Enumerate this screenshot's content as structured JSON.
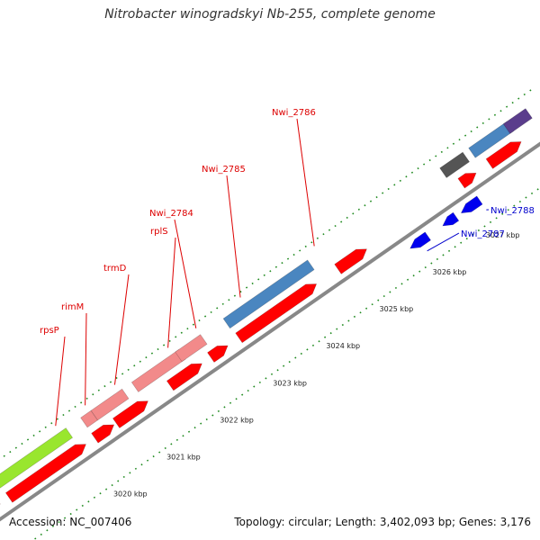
{
  "title": "Nitrobacter winogradskyi Nb-255, complete genome",
  "footer": {
    "accession": "Accession: NC_007406",
    "stats": "Topology: circular; Length: 3,402,093 bp; Genes: 3,176"
  },
  "colors": {
    "backbone": "#888888",
    "forward_cds": "#ff0000",
    "forward_cds_light": "#f28a8a",
    "reverse_cds": "#0000ee",
    "steelblue": "#4a86c0",
    "lime": "#99e62e",
    "gray": "#555555",
    "purple": "#5a3d8c",
    "tick": "#1f8a1f",
    "label_red": "#dd0000",
    "label_blue": "#0000cc"
  },
  "tick_labels": [
    {
      "kbp": 3020,
      "text": "3020 kbp"
    },
    {
      "kbp": 3021,
      "text": "3021 kbp"
    },
    {
      "kbp": 3022,
      "text": "3022 kbp"
    },
    {
      "kbp": 3023,
      "text": "3023 kbp"
    },
    {
      "kbp": 3024,
      "text": "3024 kbp"
    },
    {
      "kbp": 3025,
      "text": "3025 kbp"
    },
    {
      "kbp": 3026,
      "text": "3026 kbp"
    },
    {
      "kbp": 3027,
      "text": "3027 kbp"
    }
  ],
  "gene_labels": [
    {
      "name": "rpsP",
      "color": "label_red"
    },
    {
      "name": "rimM",
      "color": "label_red"
    },
    {
      "name": "trmD",
      "color": "label_red"
    },
    {
      "name": "rplS",
      "color": "label_red"
    },
    {
      "name": "Nwi_2784",
      "color": "label_red"
    },
    {
      "name": "Nwi_2785",
      "color": "label_red"
    },
    {
      "name": "Nwi_2786",
      "color": "label_red"
    },
    {
      "name": "Nwi_2787",
      "color": "label_blue"
    },
    {
      "name": "Nwi_2788",
      "color": "label_blue"
    }
  ]
}
